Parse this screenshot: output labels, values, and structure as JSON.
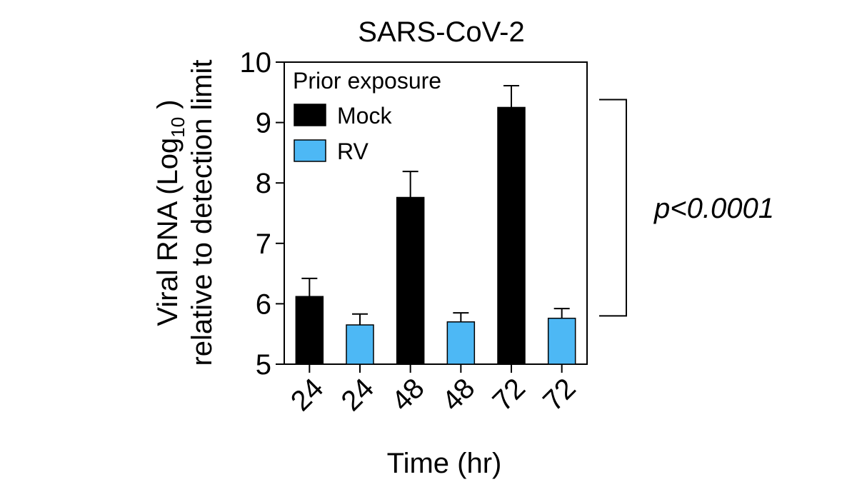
{
  "chart_data": {
    "type": "bar",
    "title": "SARS-CoV-2",
    "ylabel_line1_prefix": "Viral RNA (Log",
    "ylabel_line1_sub": "10",
    "ylabel_line1_suffix": " )",
    "ylabel_line2": "relative to detection limit",
    "xlabel": "Time (hr)",
    "ylim": [
      5,
      10
    ],
    "yticks": [
      "5",
      "6",
      "7",
      "8",
      "9",
      "10"
    ],
    "categories": [
      "24",
      "24",
      "48",
      "48",
      "72",
      "72"
    ],
    "values": [
      6.12,
      5.65,
      7.76,
      5.7,
      9.25,
      5.76
    ],
    "errors": [
      0.3,
      0.18,
      0.43,
      0.15,
      0.36,
      0.16
    ],
    "bar_series": [
      "Mock",
      "RV",
      "Mock",
      "RV",
      "Mock",
      "RV"
    ],
    "legend": {
      "title": "Prior exposure",
      "placement": "top-left",
      "entries": [
        {
          "name": "Mock",
          "color": "#000000"
        },
        {
          "name": "RV",
          "color": "#4db8f5"
        }
      ]
    },
    "annotation": {
      "text": "p<0.0001",
      "from_value": 9.38,
      "to_value": 5.8
    },
    "grid": false
  }
}
